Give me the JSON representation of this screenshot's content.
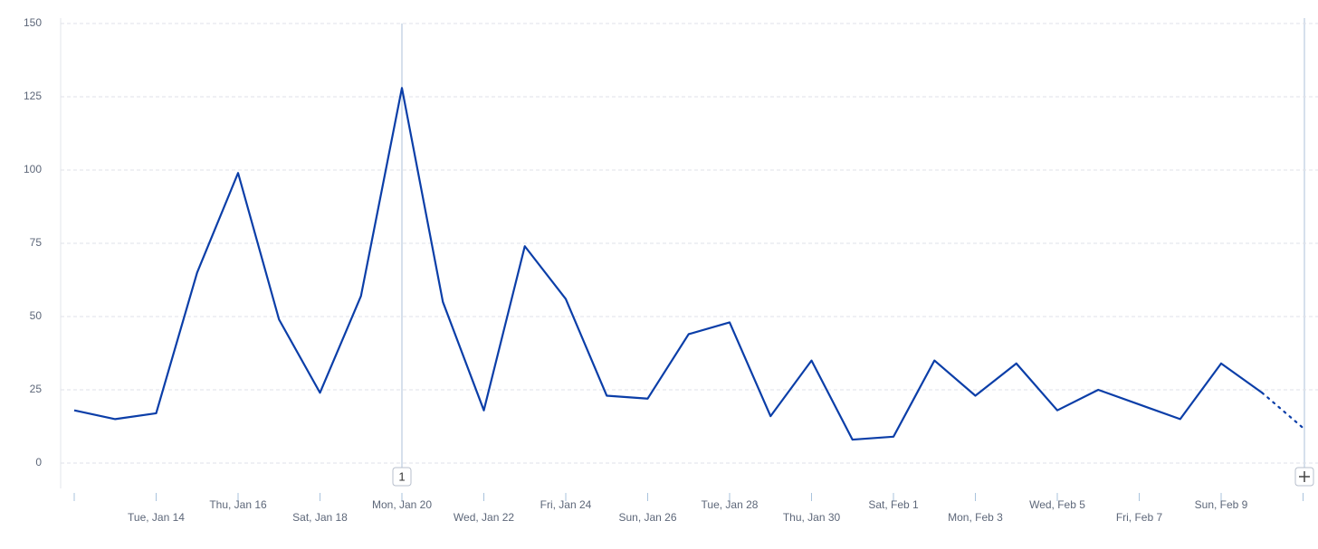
{
  "chart_data": {
    "type": "line",
    "categories": [
      null,
      null,
      "Tue, Jan 14",
      null,
      "Thu, Jan 16",
      null,
      "Sat, Jan 18",
      null,
      "Mon, Jan 20",
      null,
      "Wed, Jan 22",
      null,
      "Fri, Jan 24",
      null,
      "Sun, Jan 26",
      null,
      "Tue, Jan 28",
      null,
      "Thu, Jan 30",
      null,
      "Sat, Feb 1",
      null,
      "Mon, Feb 3",
      null,
      "Wed, Feb 5",
      null,
      "Fri, Feb 7",
      null,
      "Sun, Feb 9",
      null,
      null
    ],
    "series": [
      {
        "color": "#0b3ea8",
        "values": [
          18,
          15,
          17,
          65,
          99,
          49,
          24,
          57,
          128,
          55,
          18,
          74,
          56,
          23,
          22,
          44,
          48,
          16,
          35,
          8,
          9,
          35,
          23,
          34,
          18,
          25,
          20,
          15,
          34,
          24,
          12
        ]
      }
    ],
    "ylim": [
      0,
      150
    ],
    "yticks": [
      0,
      25,
      50,
      75,
      100,
      125,
      150
    ],
    "grid": true,
    "annotation": {
      "category": "Mon, Jan 20",
      "label": "1"
    }
  }
}
